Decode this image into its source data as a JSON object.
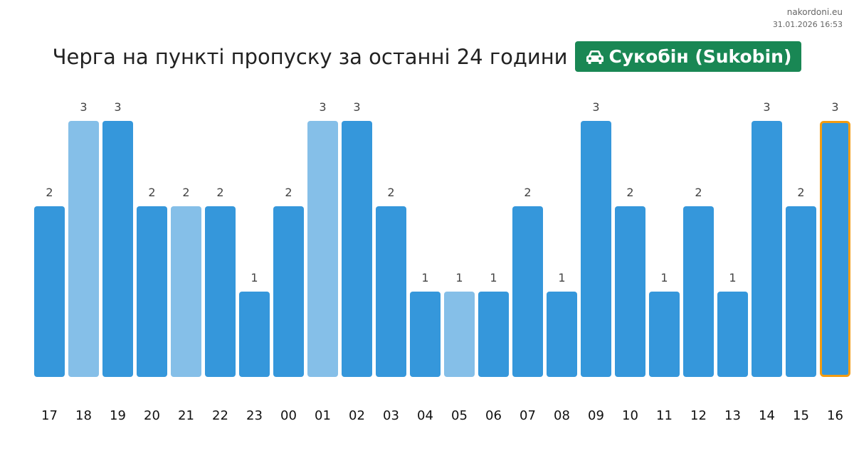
{
  "watermark": {
    "site": "nakordoni.eu",
    "timestamp": "31.01.2026 16:53"
  },
  "header": {
    "title": "Черга на пункті пропуску за останні 24 години",
    "badge_label": "Сукобін (Sukobin)",
    "badge_icon": "car-icon",
    "badge_color": "#198754"
  },
  "colors": {
    "bar": "#3597DB",
    "bar_light": "#85BFE8",
    "highlight_border": "#F39C12"
  },
  "chart_data": {
    "type": "bar",
    "categories": [
      "17",
      "18",
      "19",
      "20",
      "21",
      "22",
      "23",
      "00",
      "01",
      "02",
      "03",
      "04",
      "05",
      "06",
      "07",
      "08",
      "09",
      "10",
      "11",
      "12",
      "13",
      "14",
      "15",
      "16"
    ],
    "values": [
      2,
      3,
      3,
      2,
      2,
      2,
      1,
      2,
      3,
      3,
      2,
      1,
      1,
      1,
      2,
      1,
      3,
      2,
      1,
      2,
      1,
      3,
      2,
      3
    ],
    "light_bars": [
      "18",
      "21",
      "01",
      "05"
    ],
    "highlighted": "16",
    "ylim": [
      0,
      3
    ],
    "grid": false,
    "data_labels": true
  }
}
